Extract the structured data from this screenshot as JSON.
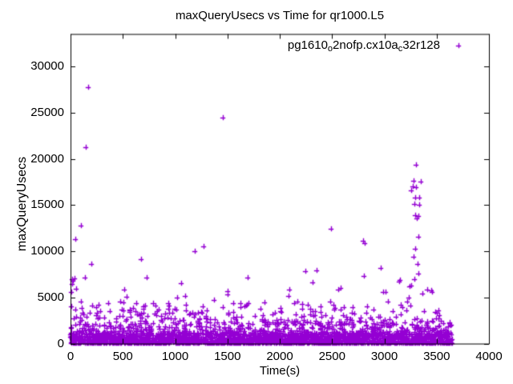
{
  "chart_data": {
    "type": "scatter",
    "title": "maxQueryUsecs vs Time for qr1000.L5",
    "xlabel": "Time(s)",
    "ylabel": "maxQueryUsecs",
    "xlim": [
      0,
      4000
    ],
    "ylim": [
      0,
      33550
    ],
    "xticks": [
      0,
      500,
      1000,
      1500,
      2000,
      2500,
      3000,
      3500,
      4000
    ],
    "yticks": [
      0,
      5000,
      10000,
      15000,
      20000,
      25000,
      30000
    ],
    "grid": false,
    "legend_position": "top-right-inside",
    "marker": {
      "shape": "plus",
      "color": "#9400D3",
      "size": 7
    },
    "series": [
      {
        "name": "pg1610o2nofp.cx10ac32r128",
        "label_segments": [
          {
            "text": "pg1610"
          },
          {
            "text": "o",
            "sub": true
          },
          {
            "text": "2nofp.cx10a"
          },
          {
            "text": "c",
            "sub": true
          },
          {
            "text": "32r128"
          }
        ],
        "x_data_range": [
          0,
          3650
        ],
        "outliers": [
          [
            169,
            27800
          ],
          [
            146,
            21250
          ],
          [
            1456,
            24450
          ],
          [
            100,
            12800
          ],
          [
            46,
            11300
          ],
          [
            199,
            8620
          ],
          [
            138,
            7150
          ],
          [
            12,
            6950
          ],
          [
            25,
            6800
          ],
          [
            35,
            7100
          ],
          [
            18,
            6500
          ],
          [
            55,
            5950
          ],
          [
            8,
            5600
          ],
          [
            513,
            5890
          ],
          [
            536,
            5100
          ],
          [
            675,
            9150
          ],
          [
            728,
            7150
          ],
          [
            1188,
            10000
          ],
          [
            1272,
            10550
          ],
          [
            1502,
            5660
          ],
          [
            1694,
            7150
          ],
          [
            2246,
            7840
          ],
          [
            2353,
            7925
          ],
          [
            2491,
            12450
          ],
          [
            2583,
            6060
          ],
          [
            2798,
            11150
          ],
          [
            2813,
            10890
          ],
          [
            2805,
            7320
          ],
          [
            2966,
            8190
          ],
          [
            3150,
            6880
          ],
          [
            3143,
            6740
          ],
          [
            3234,
            5000
          ],
          [
            3411,
            5870
          ],
          [
            3304,
            19400
          ],
          [
            3281,
            17650
          ],
          [
            3350,
            17550
          ],
          [
            3273,
            17000
          ],
          [
            3306,
            16950
          ],
          [
            3258,
            16600
          ],
          [
            3296,
            15800
          ],
          [
            3337,
            15800
          ],
          [
            3288,
            15150
          ],
          [
            3335,
            15050
          ],
          [
            3296,
            13950
          ],
          [
            3327,
            13800
          ],
          [
            3312,
            13550
          ],
          [
            3329,
            11600
          ],
          [
            3298,
            10300
          ],
          [
            3281,
            9400
          ],
          [
            3315,
            8600
          ],
          [
            3322,
            7600
          ],
          [
            3288,
            6970
          ]
        ],
        "dense_band_model": {
          "seed": 7,
          "n": 3000,
          "x_min": 2,
          "x_max": 3650,
          "layers": [
            {
              "frac": 0.5,
              "base": 0,
              "range": 1150,
              "pow": 1.3
            },
            {
              "frac": 0.35,
              "base": 0,
              "range": 2400,
              "pow": 2.6
            },
            {
              "frac": 0.1,
              "base": 1100,
              "range": 2400,
              "pow": 1.9
            },
            {
              "frac": 0.035,
              "base": 2300,
              "range": 2400,
              "pow": 1.6
            },
            {
              "frac": 0.015,
              "base": 3600,
              "range": 3100,
              "pow": 1.9
            }
          ]
        }
      }
    ]
  }
}
